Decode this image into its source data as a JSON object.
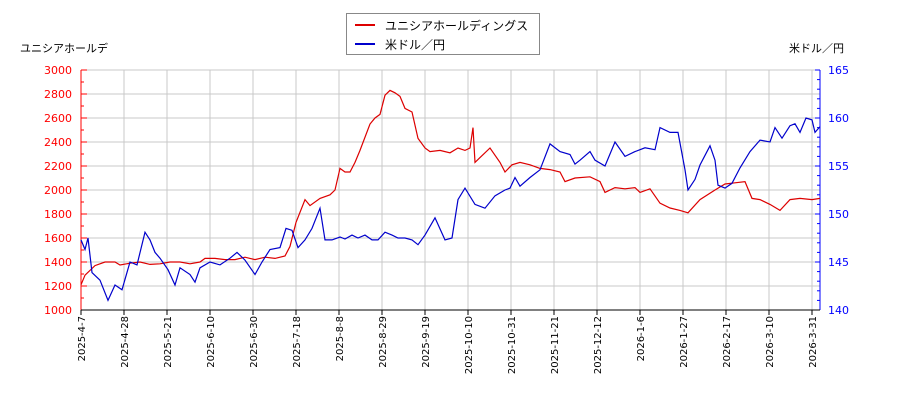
{
  "chart_data": {
    "type": "line",
    "title": "",
    "legend": [
      "ユニシアホールディングス",
      "米ドル／円"
    ],
    "legend_position": "top-center",
    "y_left_label": "ユニシアホールデ",
    "y_right_label": "米ドル／円",
    "y_left_range": [
      1000,
      3000
    ],
    "y_right_range": [
      140,
      165
    ],
    "y_left_ticks": [
      1000,
      1200,
      1400,
      1600,
      1800,
      2000,
      2200,
      2400,
      2600,
      2800,
      3000
    ],
    "y_right_ticks": [
      140,
      145,
      150,
      155,
      160,
      165
    ],
    "x_tick_labels": [
      "2025-4-7",
      "2025-4-28",
      "2025-5-21",
      "2025-6-10",
      "2025-6-30",
      "2025-7-18",
      "2025-8-8",
      "2025-8-29",
      "2025-9-19",
      "2025-10-10",
      "2025-10-31",
      "2025-11-21",
      "2025-12-12",
      "2026-1-6",
      "2026-1-27",
      "2026-2-17",
      "2026-3-10",
      "2026-3-31"
    ],
    "grid": true,
    "series": [
      {
        "name": "ユニシアホールディングス",
        "axis": "left",
        "color": "#dd0000",
        "points": [
          [
            81,
            1210
          ],
          [
            85,
            1290
          ],
          [
            95,
            1370
          ],
          [
            105,
            1400
          ],
          [
            115,
            1400
          ],
          [
            120,
            1375
          ],
          [
            130,
            1390
          ],
          [
            140,
            1400
          ],
          [
            150,
            1380
          ],
          [
            160,
            1385
          ],
          [
            170,
            1400
          ],
          [
            180,
            1400
          ],
          [
            190,
            1385
          ],
          [
            200,
            1400
          ],
          [
            205,
            1430
          ],
          [
            215,
            1430
          ],
          [
            225,
            1420
          ],
          [
            235,
            1420
          ],
          [
            245,
            1440
          ],
          [
            255,
            1420
          ],
          [
            265,
            1440
          ],
          [
            275,
            1430
          ],
          [
            285,
            1450
          ],
          [
            290,
            1530
          ],
          [
            296,
            1730
          ],
          [
            305,
            1920
          ],
          [
            310,
            1870
          ],
          [
            320,
            1930
          ],
          [
            330,
            1960
          ],
          [
            335,
            2000
          ],
          [
            340,
            2180
          ],
          [
            345,
            2150
          ],
          [
            350,
            2150
          ],
          [
            355,
            2230
          ],
          [
            360,
            2330
          ],
          [
            370,
            2550
          ],
          [
            375,
            2600
          ],
          [
            380,
            2630
          ],
          [
            385,
            2790
          ],
          [
            390,
            2830
          ],
          [
            395,
            2810
          ],
          [
            400,
            2780
          ],
          [
            405,
            2680
          ],
          [
            412,
            2650
          ],
          [
            418,
            2430
          ],
          [
            425,
            2350
          ],
          [
            430,
            2320
          ],
          [
            440,
            2330
          ],
          [
            450,
            2310
          ],
          [
            458,
            2350
          ],
          [
            465,
            2330
          ],
          [
            470,
            2350
          ],
          [
            473,
            2520
          ],
          [
            475,
            2230
          ],
          [
            480,
            2270
          ],
          [
            490,
            2350
          ],
          [
            500,
            2230
          ],
          [
            505,
            2150
          ],
          [
            512,
            2210
          ],
          [
            520,
            2230
          ],
          [
            530,
            2210
          ],
          [
            540,
            2180
          ],
          [
            550,
            2170
          ],
          [
            560,
            2150
          ],
          [
            565,
            2070
          ],
          [
            575,
            2100
          ],
          [
            590,
            2110
          ],
          [
            600,
            2070
          ],
          [
            605,
            1980
          ],
          [
            615,
            2020
          ],
          [
            625,
            2010
          ],
          [
            635,
            2020
          ],
          [
            640,
            1980
          ],
          [
            650,
            2010
          ],
          [
            660,
            1890
          ],
          [
            670,
            1850
          ],
          [
            680,
            1830
          ],
          [
            688,
            1810
          ],
          [
            700,
            1920
          ],
          [
            715,
            2000
          ],
          [
            725,
            2050
          ],
          [
            735,
            2060
          ],
          [
            745,
            2070
          ],
          [
            752,
            1930
          ],
          [
            760,
            1920
          ],
          [
            770,
            1880
          ],
          [
            780,
            1830
          ],
          [
            790,
            1920
          ],
          [
            800,
            1930
          ],
          [
            812,
            1920
          ],
          [
            820,
            1930
          ]
        ]
      },
      {
        "name": "米ドル／円",
        "axis": "right",
        "color": "#0000cc",
        "points": [
          [
            81,
            147.3
          ],
          [
            85,
            146.3
          ],
          [
            88,
            147.5
          ],
          [
            92,
            143.9
          ],
          [
            100,
            143.1
          ],
          [
            108,
            141.0
          ],
          [
            115,
            142.6
          ],
          [
            122,
            142.1
          ],
          [
            130,
            145.0
          ],
          [
            137,
            144.7
          ],
          [
            145,
            148.1
          ],
          [
            150,
            147.3
          ],
          [
            155,
            146.0
          ],
          [
            160,
            145.4
          ],
          [
            168,
            144.2
          ],
          [
            175,
            142.6
          ],
          [
            180,
            144.4
          ],
          [
            190,
            143.7
          ],
          [
            195,
            142.9
          ],
          [
            200,
            144.4
          ],
          [
            210,
            145.0
          ],
          [
            220,
            144.7
          ],
          [
            230,
            145.4
          ],
          [
            237,
            146.0
          ],
          [
            245,
            145.2
          ],
          [
            255,
            143.7
          ],
          [
            262,
            145.0
          ],
          [
            270,
            146.3
          ],
          [
            280,
            146.5
          ],
          [
            286,
            148.5
          ],
          [
            292,
            148.3
          ],
          [
            298,
            146.5
          ],
          [
            305,
            147.3
          ],
          [
            312,
            148.5
          ],
          [
            320,
            150.6
          ],
          [
            325,
            147.3
          ],
          [
            332,
            147.3
          ],
          [
            340,
            147.6
          ],
          [
            345,
            147.4
          ],
          [
            352,
            147.8
          ],
          [
            358,
            147.5
          ],
          [
            365,
            147.8
          ],
          [
            372,
            147.3
          ],
          [
            378,
            147.3
          ],
          [
            385,
            148.1
          ],
          [
            392,
            147.8
          ],
          [
            398,
            147.5
          ],
          [
            405,
            147.5
          ],
          [
            412,
            147.3
          ],
          [
            418,
            146.8
          ],
          [
            425,
            147.8
          ],
          [
            435,
            149.6
          ],
          [
            445,
            147.3
          ],
          [
            452,
            147.5
          ],
          [
            458,
            151.5
          ],
          [
            465,
            152.7
          ],
          [
            475,
            151.0
          ],
          [
            485,
            150.6
          ],
          [
            495,
            151.9
          ],
          [
            505,
            152.5
          ],
          [
            510,
            152.7
          ],
          [
            515,
            153.8
          ],
          [
            520,
            152.9
          ],
          [
            530,
            153.8
          ],
          [
            540,
            154.6
          ],
          [
            550,
            157.3
          ],
          [
            560,
            156.5
          ],
          [
            570,
            156.2
          ],
          [
            575,
            155.2
          ],
          [
            580,
            155.6
          ],
          [
            590,
            156.5
          ],
          [
            595,
            155.6
          ],
          [
            605,
            155.0
          ],
          [
            615,
            157.5
          ],
          [
            625,
            156.0
          ],
          [
            635,
            156.5
          ],
          [
            645,
            156.9
          ],
          [
            655,
            156.7
          ],
          [
            660,
            159.0
          ],
          [
            670,
            158.5
          ],
          [
            678,
            158.5
          ],
          [
            685,
            154.6
          ],
          [
            688,
            152.5
          ],
          [
            695,
            153.6
          ],
          [
            700,
            155.1
          ],
          [
            710,
            157.1
          ],
          [
            715,
            155.6
          ],
          [
            718,
            153.0
          ],
          [
            725,
            152.7
          ],
          [
            732,
            153.2
          ],
          [
            740,
            154.8
          ],
          [
            750,
            156.5
          ],
          [
            760,
            157.7
          ],
          [
            770,
            157.5
          ],
          [
            775,
            159.0
          ],
          [
            782,
            157.9
          ],
          [
            790,
            159.2
          ],
          [
            795,
            159.4
          ],
          [
            800,
            158.5
          ],
          [
            806,
            160.0
          ],
          [
            812,
            159.8
          ],
          [
            815,
            158.5
          ],
          [
            820,
            159.1
          ]
        ]
      }
    ]
  },
  "colors": {
    "left_axis": "#ff0000",
    "right_axis": "#0000ff",
    "grid": "#c8c8c8",
    "stock_line": "#dd0000",
    "fx_line": "#0000cc"
  }
}
